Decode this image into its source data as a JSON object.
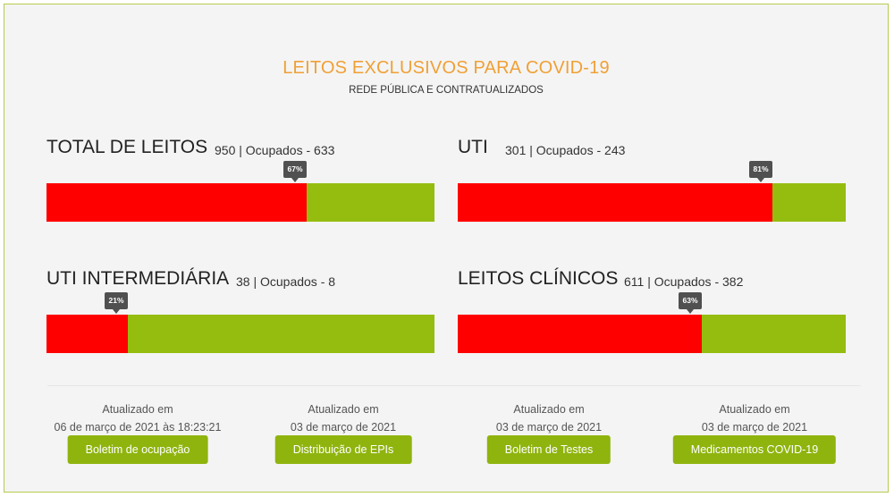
{
  "header": {
    "title": "LEITOS EXCLUSIVOS PARA COVID-19",
    "subtitle": "REDE PÚBLICA E CONTRATUALIZADOS"
  },
  "colors": {
    "title": "#f0a035",
    "occupied": "#ff0000",
    "free": "#95bd10",
    "button": "#8fb40e",
    "tooltip": "#505050"
  },
  "beds": [
    {
      "name": "TOTAL DE LEITOS",
      "stats": "950 | Ocupados - 633",
      "percent_label": "67%",
      "occupancy": 0.67
    },
    {
      "name": "UTI",
      "stats": "301 | Ocupados - 243",
      "percent_label": "81%",
      "occupancy": 0.81
    },
    {
      "name": "UTI INTERMEDIÁRIA",
      "stats": "38 | Ocupados - 8",
      "percent_label": "21%",
      "occupancy": 0.21
    },
    {
      "name": "LEITOS CLÍNICOS",
      "stats": "611 | Ocupados - 382",
      "percent_label": "63%",
      "occupancy": 0.63
    }
  ],
  "updates": [
    {
      "label": "Atualizado em",
      "date": "06 de março de 2021 às 18:23:21",
      "button": "Boletim de ocupação"
    },
    {
      "label": "Atualizado em",
      "date": "03 de março de 2021",
      "button": "Distribuição de EPIs"
    },
    {
      "label": "Atualizado em",
      "date": "03 de março de 2021",
      "button": "Boletim de Testes"
    },
    {
      "label": "Atualizado em",
      "date": "03 de março de 2021",
      "button": "Medicamentos COVID-19"
    }
  ]
}
